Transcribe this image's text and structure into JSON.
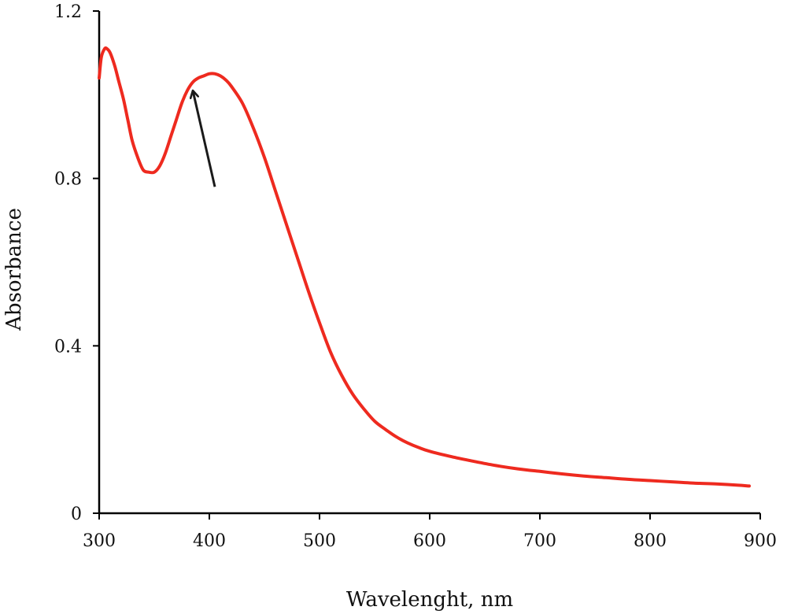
{
  "chart_data": {
    "type": "line",
    "title": "",
    "xlabel": "Wavelenght, nm",
    "ylabel": "Absorbance",
    "xlim": [
      300,
      900
    ],
    "ylim": [
      0,
      1.2
    ],
    "x_ticks": [
      300,
      400,
      500,
      600,
      700,
      800,
      900
    ],
    "x_tick_labels": [
      "300",
      "400",
      "500",
      "600",
      "700",
      "800",
      "900"
    ],
    "y_ticks": [
      0,
      0.4,
      0.8,
      1.2
    ],
    "y_tick_labels": [
      "0",
      "0.4",
      "0.8",
      "1.2"
    ],
    "grid": false,
    "legend": "none",
    "series": [
      {
        "color": "#ee2a1f",
        "x": [
          300,
          302,
          305,
          307,
          310,
          314,
          318,
          322,
          326,
          330,
          335,
          340,
          345,
          350,
          355,
          360,
          365,
          370,
          375,
          380,
          385,
          390,
          395,
          400,
          405,
          410,
          415,
          420,
          430,
          440,
          450,
          460,
          470,
          480,
          490,
          500,
          510,
          520,
          530,
          540,
          550,
          560,
          570,
          580,
          590,
          600,
          620,
          640,
          660,
          680,
          700,
          720,
          740,
          760,
          780,
          800,
          820,
          840,
          860,
          880,
          890
        ],
        "y": [
          1.04,
          1.09,
          1.11,
          1.11,
          1.1,
          1.07,
          1.03,
          0.99,
          0.94,
          0.89,
          0.85,
          0.82,
          0.815,
          0.815,
          0.83,
          0.86,
          0.9,
          0.94,
          0.98,
          1.01,
          1.03,
          1.04,
          1.045,
          1.05,
          1.05,
          1.045,
          1.035,
          1.02,
          0.98,
          0.92,
          0.85,
          0.77,
          0.69,
          0.61,
          0.53,
          0.455,
          0.385,
          0.33,
          0.285,
          0.25,
          0.22,
          0.2,
          0.182,
          0.168,
          0.157,
          0.148,
          0.135,
          0.124,
          0.114,
          0.106,
          0.1,
          0.094,
          0.089,
          0.085,
          0.081,
          0.078,
          0.075,
          0.072,
          0.07,
          0.067,
          0.065
        ]
      }
    ],
    "annotations": [
      {
        "type": "arrow",
        "from": [
          405,
          0.78
        ],
        "to": [
          385,
          1.01
        ],
        "color": "#1a1a1a"
      }
    ]
  }
}
